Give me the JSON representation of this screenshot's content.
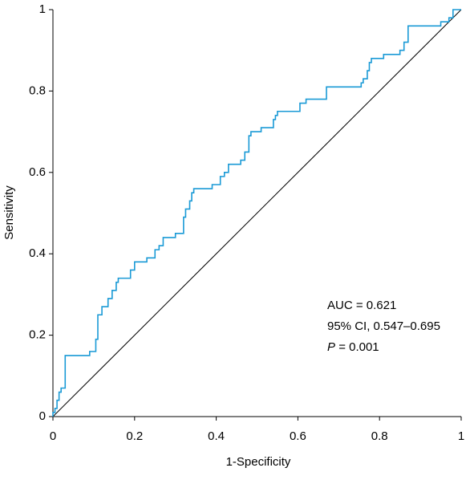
{
  "chart_data": {
    "type": "line",
    "x_label": "1-Specificity",
    "y_label": "Sensitivity",
    "xlim": [
      0,
      1
    ],
    "ylim": [
      0,
      1
    ],
    "xticks": [
      0,
      0.2,
      0.4,
      0.6,
      0.8,
      1
    ],
    "yticks": [
      0,
      0.2,
      0.4,
      0.6,
      0.8,
      1
    ],
    "series": [
      {
        "color": "#1a9ad6",
        "x": [
          0,
          0,
          0.005,
          0.005,
          0.01,
          0.01,
          0.015,
          0.015,
          0.02,
          0.02,
          0.03,
          0.03,
          0.09,
          0.09,
          0.105,
          0.105,
          0.11,
          0.11,
          0.12,
          0.12,
          0.135,
          0.135,
          0.145,
          0.145,
          0.155,
          0.155,
          0.16,
          0.16,
          0.19,
          0.19,
          0.2,
          0.2,
          0.23,
          0.23,
          0.25,
          0.25,
          0.26,
          0.26,
          0.27,
          0.27,
          0.3,
          0.3,
          0.32,
          0.32,
          0.325,
          0.325,
          0.335,
          0.335,
          0.34,
          0.34,
          0.345,
          0.345,
          0.39,
          0.39,
          0.41,
          0.41,
          0.42,
          0.42,
          0.43,
          0.43,
          0.46,
          0.46,
          0.47,
          0.47,
          0.48,
          0.48,
          0.485,
          0.485,
          0.51,
          0.51,
          0.54,
          0.54,
          0.545,
          0.545,
          0.55,
          0.55,
          0.605,
          0.605,
          0.62,
          0.62,
          0.67,
          0.67,
          0.755,
          0.755,
          0.76,
          0.76,
          0.77,
          0.77,
          0.775,
          0.775,
          0.78,
          0.78,
          0.81,
          0.81,
          0.85,
          0.85,
          0.86,
          0.86,
          0.87,
          0.87,
          0.95,
          0.95,
          0.97,
          0.97,
          0.98,
          0.98,
          1
        ],
        "values": [
          0,
          0.01,
          0.01,
          0.02,
          0.02,
          0.04,
          0.04,
          0.06,
          0.06,
          0.07,
          0.07,
          0.15,
          0.15,
          0.16,
          0.16,
          0.19,
          0.19,
          0.25,
          0.25,
          0.27,
          0.27,
          0.29,
          0.29,
          0.31,
          0.31,
          0.33,
          0.33,
          0.34,
          0.34,
          0.36,
          0.36,
          0.38,
          0.38,
          0.39,
          0.39,
          0.41,
          0.41,
          0.42,
          0.42,
          0.44,
          0.44,
          0.45,
          0.45,
          0.49,
          0.49,
          0.51,
          0.51,
          0.53,
          0.53,
          0.55,
          0.55,
          0.56,
          0.56,
          0.57,
          0.57,
          0.59,
          0.59,
          0.6,
          0.6,
          0.62,
          0.62,
          0.63,
          0.63,
          0.65,
          0.65,
          0.69,
          0.69,
          0.7,
          0.7,
          0.71,
          0.71,
          0.73,
          0.73,
          0.74,
          0.74,
          0.75,
          0.75,
          0.77,
          0.77,
          0.78,
          0.78,
          0.81,
          0.81,
          0.82,
          0.82,
          0.83,
          0.83,
          0.85,
          0.85,
          0.87,
          0.87,
          0.88,
          0.88,
          0.89,
          0.89,
          0.9,
          0.9,
          0.92,
          0.92,
          0.96,
          0.96,
          0.97,
          0.97,
          0.98,
          0.98,
          1,
          1
        ]
      }
    ],
    "reference_line": {
      "color": "#000000",
      "x": [
        0,
        1
      ],
      "values": [
        0,
        1
      ]
    },
    "annotations": [
      "AUC = 0.621",
      "95% CI, 0.547–0.695"
    ],
    "p_value": {
      "symbol": "P",
      "text": "= 0.001"
    }
  }
}
